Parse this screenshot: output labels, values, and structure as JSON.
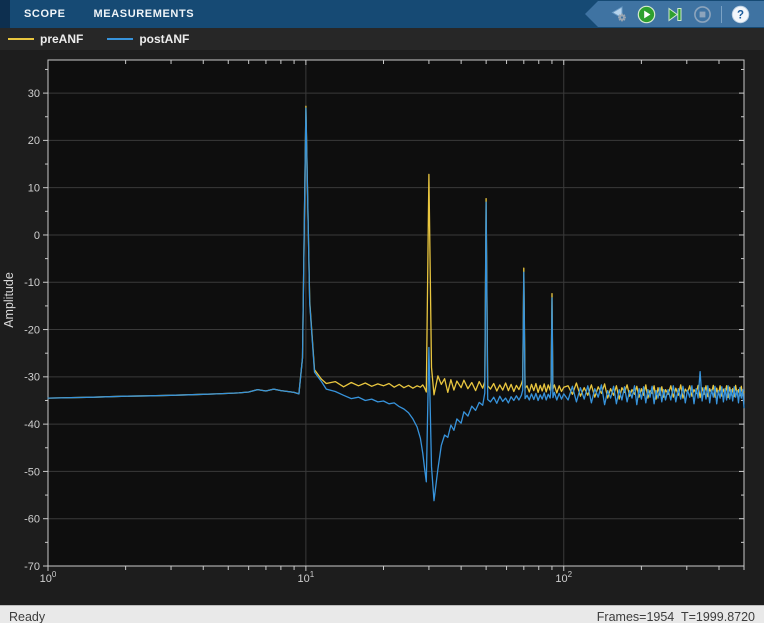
{
  "tab_bar": {
    "tabs": [
      {
        "label": "SCOPE"
      },
      {
        "label": "MEASUREMENTS"
      }
    ]
  },
  "toolbar": {
    "pacing_label": "simulation pacing options",
    "run_label": "run",
    "step_label": "step forward",
    "stop_label": "stop",
    "help_glyph": "?"
  },
  "legend": {
    "items": [
      {
        "label": "preANF",
        "color": "#E9C63F"
      },
      {
        "label": "postANF",
        "color": "#3793DB"
      }
    ]
  },
  "status_bar": {
    "left": "Ready",
    "right": "Frames=1954  T=1999.8720"
  },
  "chart_data": {
    "type": "line",
    "title": "",
    "xlabel": "",
    "ylabel": "Amplitude",
    "xscale": "log",
    "xlim": [
      1,
      500
    ],
    "ylim": [
      -70,
      37
    ],
    "grid": true,
    "legend_position": "top-strip",
    "axis_colors": {
      "plot_bg": "#0E0E0E",
      "grid": "#3A3A3A",
      "box": "#C9C9C9",
      "tick_label": "#CFCFCF"
    },
    "x_major_ticks": [
      {
        "value": 1,
        "base": "10",
        "exp": "0"
      },
      {
        "value": 10,
        "base": "10",
        "exp": "1"
      },
      {
        "value": 100,
        "base": "10",
        "exp": "2"
      }
    ],
    "x_minor_ticks": [
      2,
      3,
      4,
      5,
      6,
      7,
      8,
      9,
      20,
      30,
      40,
      50,
      60,
      70,
      80,
      90,
      200,
      300,
      400,
      500
    ],
    "y_major_ticks": [
      30,
      20,
      10,
      0,
      -10,
      -20,
      -30,
      -40,
      -50,
      -60,
      -70
    ],
    "y_minor_ticks": [
      35,
      25,
      15,
      5,
      -5,
      -15,
      -25,
      -35,
      -45,
      -55,
      -65
    ],
    "x": [
      1,
      1.5,
      2,
      2.5,
      3,
      3.5,
      4,
      4.5,
      5,
      5.5,
      6,
      6.5,
      7,
      7.5,
      8,
      8.5,
      9,
      9.4,
      9.7,
      10,
      10.35,
      10.8,
      11.5,
      12,
      13,
      14,
      15,
      16,
      17,
      18,
      19,
      20,
      21,
      22,
      23,
      24,
      25,
      26,
      27,
      27.8,
      28.4,
      28.9,
      29.3,
      30,
      30.7,
      31.4,
      32.5,
      33.5,
      34.5,
      35.5,
      36.5,
      37.5,
      38.5,
      40,
      41,
      42.5,
      44,
      45.5,
      47,
      48.5,
      49.4,
      50,
      50.7,
      52,
      53.5,
      55,
      56.5,
      58,
      59.5,
      61,
      62.5,
      64,
      65.5,
      67,
      68.5,
      69.3,
      70,
      70.8,
      72,
      73.5,
      75,
      76.5,
      78,
      79.5,
      81,
      82.5,
      84,
      85.5,
      87,
      88.5,
      89.3,
      90,
      90.8,
      92,
      94,
      96,
      98,
      100,
      104,
      108,
      112,
      116,
      120,
      124,
      128,
      132,
      136,
      140,
      144,
      148,
      152,
      156,
      160,
      164,
      168,
      172,
      176,
      180,
      184,
      188,
      192,
      196,
      200,
      204,
      208,
      212,
      216,
      220,
      224,
      228,
      232,
      236,
      240,
      244,
      248,
      254,
      260,
      266,
      272,
      278,
      284,
      290,
      296,
      302,
      308,
      314,
      320,
      326,
      332,
      338,
      344,
      350,
      356,
      362,
      368,
      374,
      380,
      386,
      392,
      398,
      404,
      410,
      416,
      422,
      428,
      434,
      440,
      446,
      452,
      458,
      464,
      470,
      476,
      482,
      488,
      494,
      500
    ],
    "series": [
      {
        "name": "preANF",
        "color": "#E9C63F",
        "values": [
          -34.5,
          -34.3,
          -34.1,
          -34.0,
          -33.9,
          -33.8,
          -33.7,
          -33.6,
          -33.5,
          -33.4,
          -33.2,
          -32.7,
          -33.0,
          -32.6,
          -32.9,
          -33.1,
          -33.3,
          -33.6,
          -26.0,
          27.2,
          -14.0,
          -28.5,
          -30.5,
          -31.4,
          -31.0,
          -32.1,
          -31.2,
          -31.9,
          -31.3,
          -32.0,
          -31.5,
          -31.9,
          -31.4,
          -32.2,
          -31.6,
          -32.3,
          -31.8,
          -32.4,
          -31.9,
          -32.2,
          -31.7,
          -32.4,
          -33.2,
          12.8,
          -28.0,
          -33.8,
          -29.8,
          -31.6,
          -30.4,
          -33.3,
          -30.6,
          -32.8,
          -30.9,
          -32.3,
          -30.7,
          -32.5,
          -31.2,
          -32.9,
          -31.0,
          -32.4,
          -31.0,
          7.7,
          -31.9,
          -32.6,
          -31.4,
          -33.0,
          -31.7,
          -32.8,
          -31.3,
          -32.9,
          -31.6,
          -33.1,
          -31.8,
          -32.7,
          -31.5,
          -30.6,
          -7.0,
          -32.4,
          -31.9,
          -33.2,
          -31.6,
          -32.9,
          -31.4,
          -33.3,
          -31.8,
          -33.0,
          -31.5,
          -33.2,
          -31.7,
          -32.8,
          -30.9,
          -12.4,
          -32.6,
          -31.7,
          -33.4,
          -31.9,
          -33.1,
          -32.2,
          -31.9,
          -33.7,
          -31.3,
          -34.1,
          -32.3,
          -33.9,
          -31.7,
          -34.3,
          -32.1,
          -33.5,
          -31.5,
          -34.5,
          -32.5,
          -33.9,
          -31.9,
          -34.7,
          -32.3,
          -33.3,
          -31.7,
          -34.1,
          -32.7,
          -33.7,
          -32.0,
          -34.3,
          -32.5,
          -33.9,
          -31.7,
          -34.5,
          -32.9,
          -33.5,
          -31.9,
          -34.7,
          -32.3,
          -33.9,
          -32.1,
          -34.3,
          -32.7,
          -33.7,
          -31.9,
          -34.3,
          -32.4,
          -33.9,
          -31.7,
          -34.5,
          -32.6,
          -33.3,
          -31.9,
          -34.1,
          -32.7,
          -33.5,
          -31.8,
          -34.4,
          -32.3,
          -33.7,
          -31.9,
          -34.2,
          -32.5,
          -33.4,
          -31.8,
          -34.3,
          -32.4,
          -33.8,
          -31.9,
          -34.1,
          -32.6,
          -33.5,
          -31.9,
          -34.4,
          -32.2,
          -33.8,
          -32.5,
          -34.2,
          -31.8,
          -33.6,
          -32.7,
          -34.0,
          -32.0,
          -33.9,
          -33.2
        ]
      },
      {
        "name": "postANF",
        "color": "#3793DB",
        "values": [
          -34.5,
          -34.3,
          -34.1,
          -34.0,
          -33.9,
          -33.8,
          -33.7,
          -33.6,
          -33.5,
          -33.4,
          -33.2,
          -32.7,
          -33.0,
          -32.6,
          -32.9,
          -33.1,
          -33.3,
          -33.6,
          -26.0,
          26.8,
          -14.5,
          -29.0,
          -31.0,
          -32.6,
          -33.1,
          -33.9,
          -34.6,
          -34.3,
          -35.0,
          -34.7,
          -35.3,
          -35.1,
          -35.7,
          -35.5,
          -36.3,
          -36.8,
          -37.6,
          -38.9,
          -40.6,
          -43.0,
          -46.2,
          -49.6,
          -52.2,
          -23.8,
          -49.0,
          -56.2,
          -49.5,
          -44.5,
          -42.3,
          -42.8,
          -40.2,
          -41.3,
          -38.9,
          -39.8,
          -37.4,
          -38.3,
          -36.2,
          -37.1,
          -35.4,
          -36.0,
          -33.4,
          6.9,
          -34.8,
          -35.3,
          -34.3,
          -35.6,
          -34.1,
          -35.2,
          -34.5,
          -35.5,
          -34.2,
          -35.0,
          -34.0,
          -34.9,
          -33.9,
          -32.8,
          -7.9,
          -34.6,
          -33.9,
          -34.9,
          -33.6,
          -34.8,
          -33.5,
          -35.0,
          -33.8,
          -34.7,
          -33.4,
          -34.9,
          -33.7,
          -34.5,
          -32.4,
          -13.3,
          -34.4,
          -33.3,
          -34.9,
          -33.5,
          -34.7,
          -33.6,
          -34.9,
          -32.0,
          -35.3,
          -32.3,
          -34.7,
          -31.9,
          -35.5,
          -32.5,
          -34.3,
          -31.7,
          -35.9,
          -32.9,
          -34.5,
          -32.0,
          -35.7,
          -32.7,
          -34.9,
          -32.1,
          -35.3,
          -32.9,
          -34.5,
          -31.9,
          -35.9,
          -32.5,
          -34.7,
          -32.1,
          -35.5,
          -32.7,
          -34.3,
          -32.0,
          -35.7,
          -32.9,
          -34.5,
          -32.3,
          -35.3,
          -32.7,
          -34.9,
          -32.7,
          -34.9,
          -31.9,
          -35.3,
          -32.5,
          -34.7,
          -32.0,
          -35.5,
          -32.8,
          -34.3,
          -31.9,
          -35.7,
          -32.5,
          -34.5,
          -28.9,
          -35.1,
          -32.3,
          -34.7,
          -31.9,
          -35.5,
          -32.7,
          -34.3,
          -32.0,
          -35.7,
          -32.9,
          -34.5,
          -32.1,
          -35.3,
          -32.5,
          -34.9,
          -31.9,
          -34.7,
          -32.7,
          -35.1,
          -32.1,
          -34.3,
          -32.9,
          -35.5,
          -32.3,
          -34.5,
          -32.7,
          -36.5
        ]
      }
    ]
  }
}
